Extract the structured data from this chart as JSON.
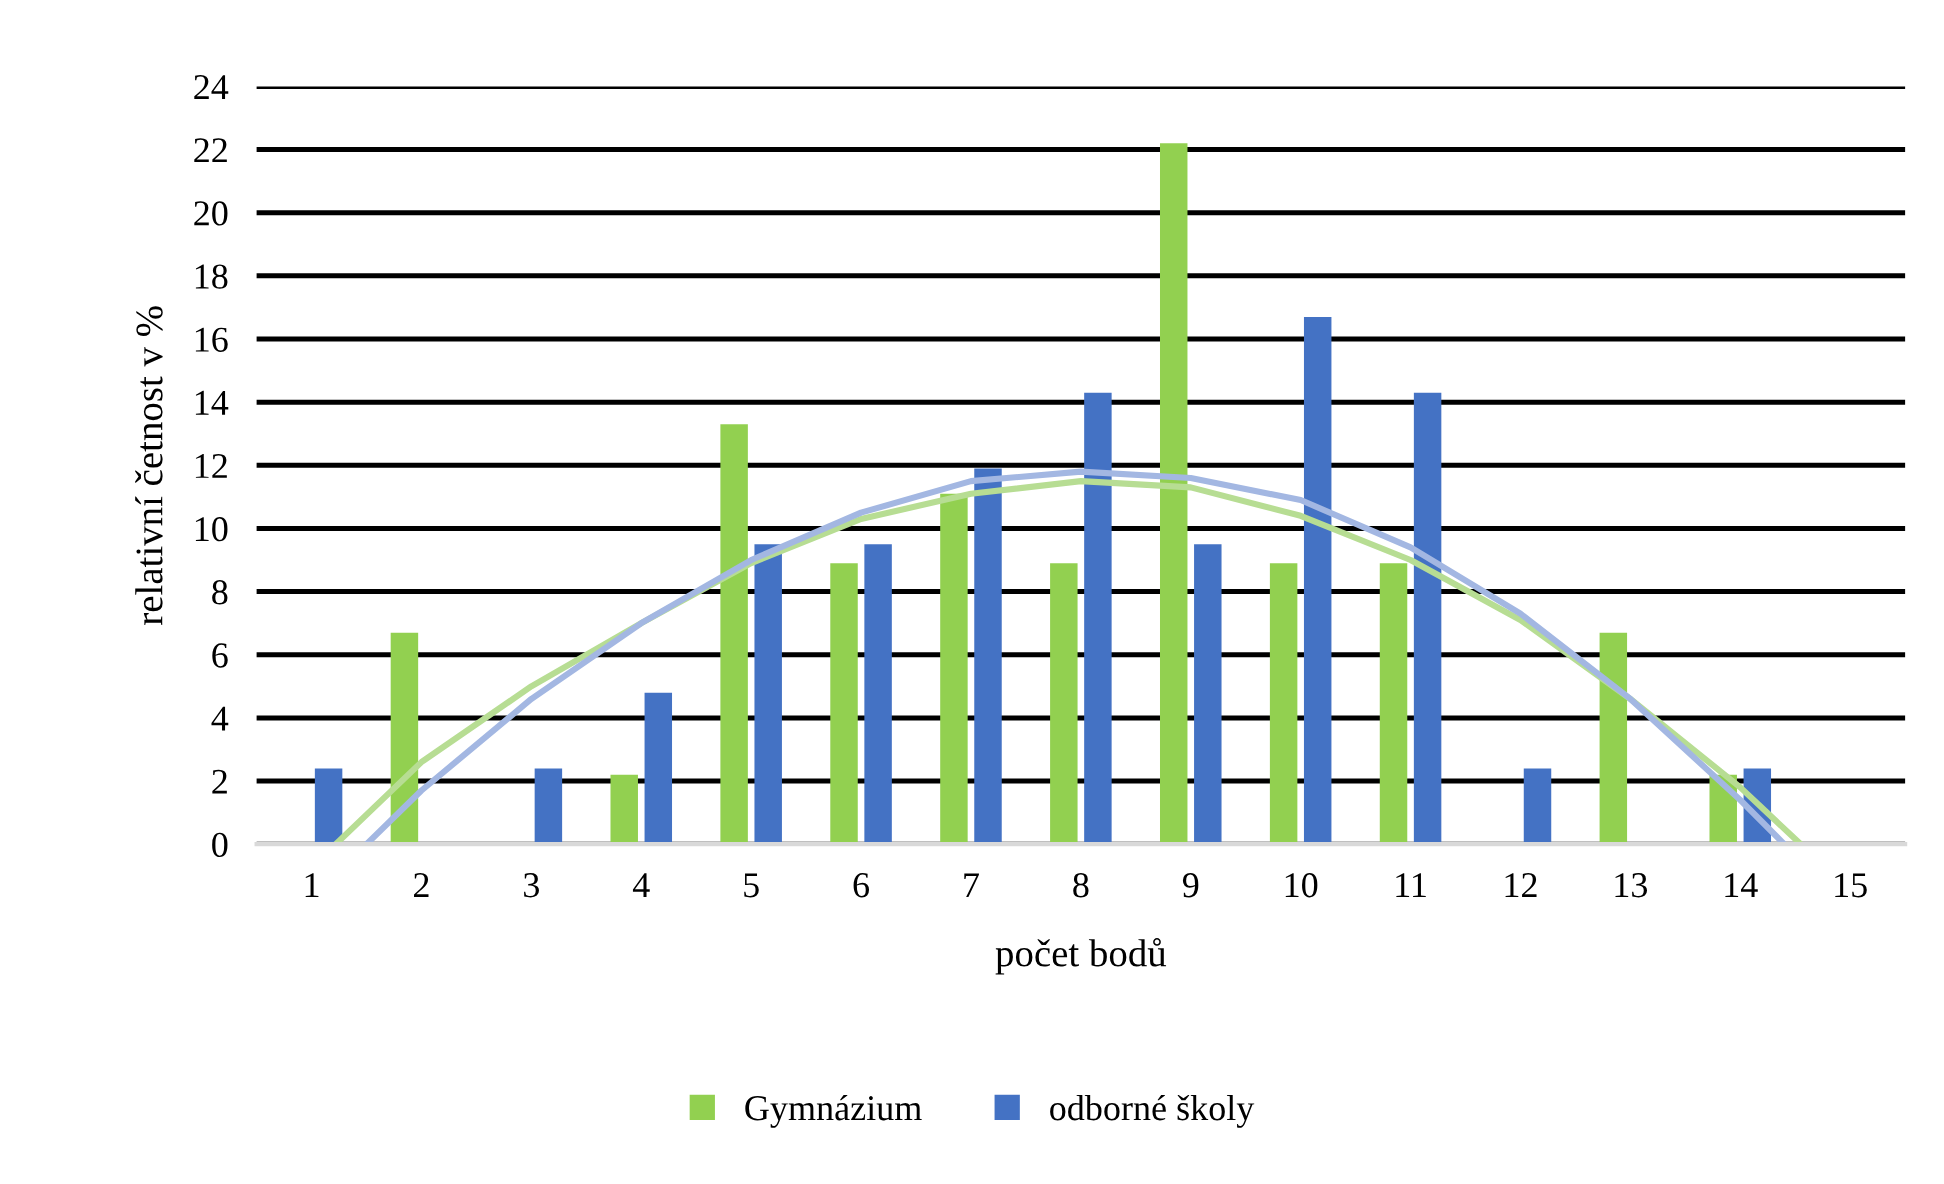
{
  "chart_data": {
    "type": "bar",
    "xlabel": "počet bodů",
    "ylabel": "relativní četnost v %",
    "x": [
      1,
      2,
      3,
      4,
      5,
      6,
      7,
      8,
      9,
      10,
      11,
      12,
      13,
      14,
      15
    ],
    "xlim": [
      0.5,
      15.5
    ],
    "xticks": [
      1,
      2,
      3,
      4,
      5,
      6,
      7,
      8,
      9,
      10,
      11,
      12,
      13,
      14,
      15
    ],
    "ylim": [
      0,
      24
    ],
    "yticks": [
      0,
      2,
      4,
      6,
      8,
      10,
      12,
      14,
      16,
      18,
      20,
      22,
      24
    ],
    "grid": "y",
    "legend": "bottom",
    "series": [
      {
        "name": "Gymnázium",
        "color": "#92d050",
        "values": [
          0,
          6.7,
          0,
          2.2,
          13.3,
          8.9,
          11.1,
          8.9,
          22.2,
          8.9,
          8.9,
          0,
          6.7,
          2.2,
          0
        ]
      },
      {
        "name": "odborné školy",
        "color": "#4472c4",
        "values": [
          2.4,
          0,
          2.4,
          4.8,
          9.5,
          9.5,
          11.9,
          14.3,
          9.5,
          16.7,
          14.3,
          2.4,
          0,
          2.4,
          0
        ]
      },
      {
        "type": "line",
        "color": "#b7dd93",
        "x": [
          1.22,
          2,
          3,
          4,
          5,
          6,
          7,
          8,
          9,
          10,
          11,
          12,
          13,
          14,
          14.55
        ],
        "values": [
          0,
          2.6,
          5.0,
          7.0,
          8.9,
          10.3,
          11.1,
          11.5,
          11.3,
          10.4,
          9.0,
          7.1,
          4.6,
          1.8,
          0
        ]
      },
      {
        "type": "line",
        "color": "#a3b7e2",
        "x": [
          1.5,
          2,
          3,
          4,
          5,
          6,
          7,
          8,
          9,
          10,
          11,
          12,
          13,
          14,
          14.4
        ],
        "values": [
          0,
          1.7,
          4.6,
          7.0,
          9.0,
          10.5,
          11.5,
          11.8,
          11.6,
          10.9,
          9.4,
          7.3,
          4.6,
          1.4,
          0
        ]
      }
    ]
  }
}
